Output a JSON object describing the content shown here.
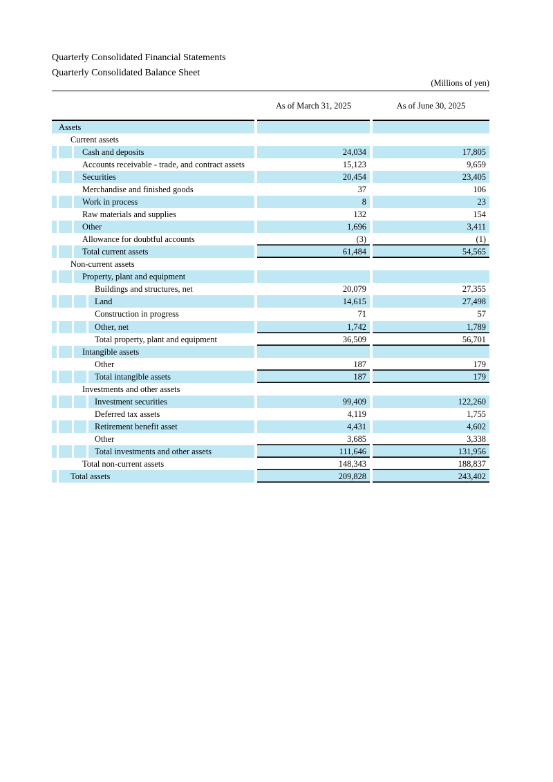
{
  "page": {
    "title": "Quarterly Consolidated Financial Statements",
    "subtitle": "Quarterly Consolidated Balance Sheet",
    "units_note": "(Millions of yen)"
  },
  "table": {
    "columns": [
      "As of March 31, 2025",
      "As of June 30, 2025"
    ],
    "colors": {
      "row_highlight": "#bfe7f4",
      "rule": "#000000"
    },
    "rows": [
      {
        "label": "Assets",
        "level": 1,
        "highlight": true,
        "v1": "",
        "v2": "",
        "line_below": false
      },
      {
        "label": "Current assets",
        "level": 2,
        "highlight": false,
        "v1": "",
        "v2": "",
        "line_below": false
      },
      {
        "label": "Cash and deposits",
        "level": 3,
        "highlight": true,
        "v1": "24,034",
        "v2": "17,805",
        "line_below": false
      },
      {
        "label": "Accounts receivable - trade, and contract assets",
        "level": 3,
        "highlight": false,
        "v1": "15,123",
        "v2": "9,659",
        "line_below": false
      },
      {
        "label": "Securities",
        "level": 3,
        "highlight": true,
        "v1": "20,454",
        "v2": "23,405",
        "line_below": false
      },
      {
        "label": "Merchandise and finished goods",
        "level": 3,
        "highlight": false,
        "v1": "37",
        "v2": "106",
        "line_below": false
      },
      {
        "label": "Work in process",
        "level": 3,
        "highlight": true,
        "v1": "8",
        "v2": "23",
        "line_below": false
      },
      {
        "label": "Raw materials and supplies",
        "level": 3,
        "highlight": false,
        "v1": "132",
        "v2": "154",
        "line_below": false
      },
      {
        "label": "Other",
        "level": 3,
        "highlight": true,
        "v1": "1,696",
        "v2": "3,411",
        "line_below": false
      },
      {
        "label": "Allowance for doubtful accounts",
        "level": 3,
        "highlight": false,
        "v1": "(3)",
        "v2": "(1)",
        "line_below": true
      },
      {
        "label": "Total current assets",
        "level": 3,
        "highlight": true,
        "v1": "61,484",
        "v2": "54,565",
        "line_below": true
      },
      {
        "label": "Non-current assets",
        "level": 2,
        "highlight": false,
        "v1": "",
        "v2": "",
        "line_below": false
      },
      {
        "label": "Property, plant and equipment",
        "level": 3,
        "highlight": true,
        "v1": "",
        "v2": "",
        "line_below": false
      },
      {
        "label": "Buildings and structures, net",
        "level": 4,
        "highlight": false,
        "v1": "20,079",
        "v2": "27,355",
        "line_below": false
      },
      {
        "label": "Land",
        "level": 4,
        "highlight": true,
        "v1": "14,615",
        "v2": "27,498",
        "line_below": false
      },
      {
        "label": "Construction in progress",
        "level": 4,
        "highlight": false,
        "v1": "71",
        "v2": "57",
        "line_below": false
      },
      {
        "label": "Other, net",
        "level": 4,
        "highlight": true,
        "v1": "1,742",
        "v2": "1,789",
        "line_below": true
      },
      {
        "label": "Total property, plant and equipment",
        "level": 4,
        "highlight": false,
        "v1": "36,509",
        "v2": "56,701",
        "line_below": true
      },
      {
        "label": "Intangible assets",
        "level": 3,
        "highlight": true,
        "v1": "",
        "v2": "",
        "line_below": false
      },
      {
        "label": "Other",
        "level": 4,
        "highlight": false,
        "v1": "187",
        "v2": "179",
        "line_below": true
      },
      {
        "label": "Total intangible assets",
        "level": 4,
        "highlight": true,
        "v1": "187",
        "v2": "179",
        "line_below": true
      },
      {
        "label": "Investments and other assets",
        "level": 3,
        "highlight": false,
        "v1": "",
        "v2": "",
        "line_below": false
      },
      {
        "label": "Investment securities",
        "level": 4,
        "highlight": true,
        "v1": "99,409",
        "v2": "122,260",
        "line_below": false
      },
      {
        "label": "Deferred tax assets",
        "level": 4,
        "highlight": false,
        "v1": "4,119",
        "v2": "1,755",
        "line_below": false
      },
      {
        "label": "Retirement benefit asset",
        "level": 4,
        "highlight": true,
        "v1": "4,431",
        "v2": "4,602",
        "line_below": false
      },
      {
        "label": "Other",
        "level": 4,
        "highlight": false,
        "v1": "3,685",
        "v2": "3,338",
        "line_below": true
      },
      {
        "label": "Total investments and other assets",
        "level": 4,
        "highlight": true,
        "v1": "111,646",
        "v2": "131,956",
        "line_below": true
      },
      {
        "label": "Total non-current assets",
        "level": 3,
        "highlight": false,
        "v1": "148,343",
        "v2": "188,837",
        "line_below": true
      },
      {
        "label": "Total assets",
        "level": 2,
        "highlight": true,
        "v1": "209,828",
        "v2": "243,402",
        "line_below": true
      }
    ]
  }
}
